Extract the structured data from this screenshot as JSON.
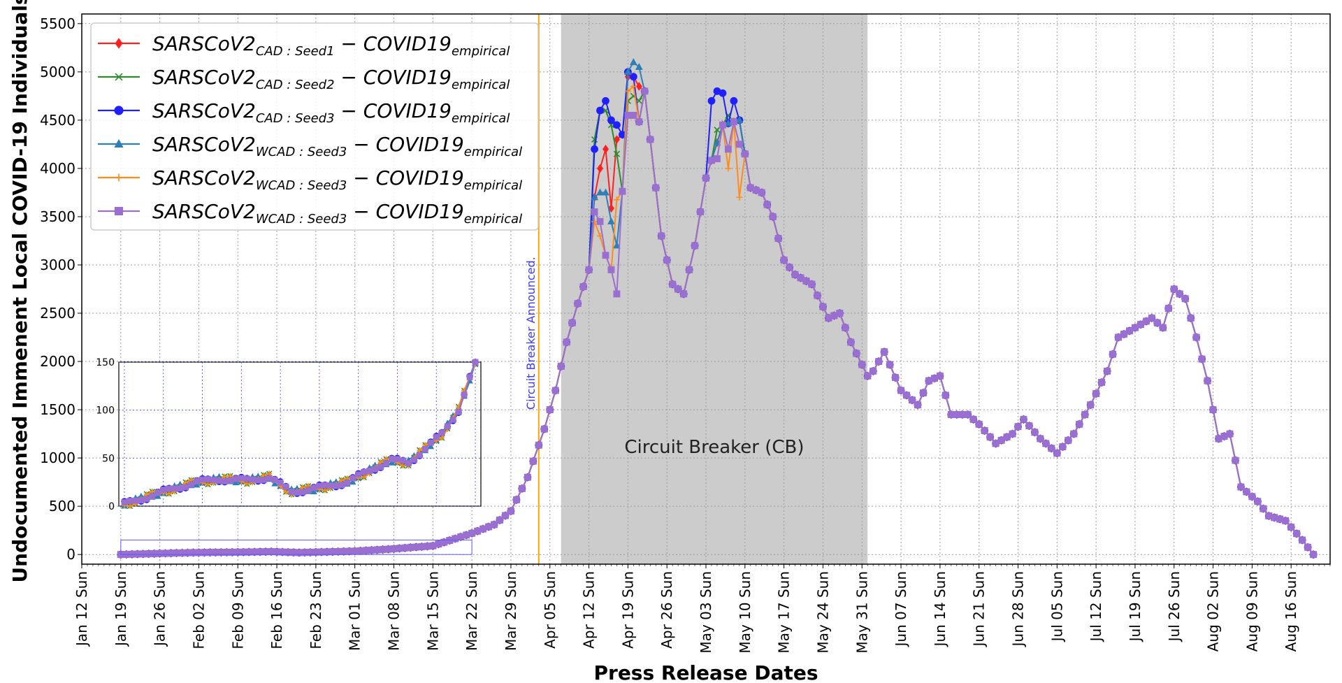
{
  "chart_data": {
    "type": "line",
    "xlabel": "Press Release Dates",
    "ylabel": "Undocumented Immenent Local COVID-19 Individuals",
    "ylim": [
      -100,
      5600
    ],
    "yticks": [
      0,
      500,
      1000,
      1500,
      2000,
      2500,
      3000,
      3500,
      4000,
      4500,
      5000,
      5500
    ],
    "x_start": "2020-01-19",
    "x_end": "2020-08-20",
    "xtick_labels": [
      "Jan 12 Sun",
      "Jan 19 Sun",
      "Jan 26 Sun",
      "Feb 02 Sun",
      "Feb 09 Sun",
      "Feb 16 Sun",
      "Feb 23 Sun",
      "Mar 01 Sun",
      "Mar 08 Sun",
      "Mar 15 Sun",
      "Mar 22 Sun",
      "Mar 29 Sun",
      "Apr 05 Sun",
      "Apr 12 Sun",
      "Apr 19 Sun",
      "Apr 26 Sun",
      "May 03 Sun",
      "May 10 Sun",
      "May 17 Sun",
      "May 24 Sun",
      "May 31 Sun",
      "Jun 07 Sun",
      "Jun 14 Sun",
      "Jun 21 Sun",
      "Jun 28 Sun",
      "Jul 05 Sun",
      "Jul 12 Sun",
      "Jul 19 Sun",
      "Jul 26 Sun",
      "Aug 02 Sun",
      "Aug 09 Sun",
      "Aug 16 Sun"
    ],
    "grid": true,
    "legend_position": "top-left",
    "legend": [
      {
        "base": "SARSCoV2",
        "sub": "CAD : Seed1",
        "mid": " − COVID19",
        "sub2": "empirical",
        "color": "#ff2020",
        "marker": "diamond"
      },
      {
        "base": "SARSCoV2",
        "sub": "CAD : Seed2",
        "mid": " − COVID19",
        "sub2": "empirical",
        "color": "#2a8c2a",
        "marker": "x"
      },
      {
        "base": "SARSCoV2",
        "sub": "CAD : Seed3",
        "mid": " − COVID19",
        "sub2": "empirical",
        "color": "#1f1fff",
        "marker": "circle"
      },
      {
        "base": "SARSCoV2",
        "sub": "WCAD : Seed3",
        "mid": " − COVID19",
        "sub2": "empirical",
        "color": "#2e7eb8",
        "marker": "triangle"
      },
      {
        "base": "SARSCoV2",
        "sub": "WCAD : Seed3",
        "mid": " − COVID19",
        "sub2": "empirical",
        "color": "#ff8c1a",
        "marker": "plus"
      },
      {
        "base": "SARSCoV2",
        "sub": "WCAD : Seed3",
        "mid": " − COVID19",
        "sub2": "empirical",
        "color": "#9a6fd0",
        "marker": "square"
      }
    ],
    "circuit_breaker": {
      "start": "2020-04-07",
      "end": "2020-06-01",
      "label": "Circuit Breaker (CB)"
    },
    "announcement": {
      "date": "2020-04-03",
      "label": "Circuit Breaker Announced.",
      "color": "#ffa500"
    },
    "base_series": [
      [
        "2020-01-19",
        0
      ],
      [
        "2020-02-01",
        20
      ],
      [
        "2020-02-10",
        25
      ],
      [
        "2020-02-15",
        30
      ],
      [
        "2020-02-20",
        20
      ],
      [
        "2020-03-01",
        35
      ],
      [
        "2020-03-07",
        55
      ],
      [
        "2020-03-15",
        90
      ],
      [
        "2020-03-22",
        220
      ],
      [
        "2020-03-26",
        310
      ],
      [
        "2020-03-29",
        450
      ],
      [
        "2020-04-01",
        800
      ],
      [
        "2020-04-04",
        1300
      ],
      [
        "2020-04-06",
        1700
      ],
      [
        "2020-04-08",
        2200
      ],
      [
        "2020-04-10",
        2600
      ],
      [
        "2020-04-12",
        2950
      ],
      [
        "2020-04-15",
        3500
      ],
      [
        "2020-04-19",
        3850
      ],
      [
        "2020-04-22",
        4800
      ],
      [
        "2020-04-25",
        3300
      ],
      [
        "2020-04-27",
        2800
      ],
      [
        "2020-04-29",
        2700
      ],
      [
        "2020-05-01",
        3200
      ],
      [
        "2020-05-03",
        3900
      ],
      [
        "2020-05-06",
        4450
      ],
      [
        "2020-05-09",
        4500
      ],
      [
        "2020-05-11",
        3800
      ],
      [
        "2020-05-13",
        3750
      ],
      [
        "2020-05-15",
        3500
      ],
      [
        "2020-05-17",
        3050
      ],
      [
        "2020-05-19",
        2900
      ],
      [
        "2020-05-22",
        2800
      ],
      [
        "2020-05-25",
        2450
      ],
      [
        "2020-05-27",
        2500
      ],
      [
        "2020-05-29",
        2200
      ],
      [
        "2020-06-01",
        1850
      ],
      [
        "2020-06-02",
        1900
      ],
      [
        "2020-06-04",
        2100
      ],
      [
        "2020-06-07",
        1700
      ],
      [
        "2020-06-10",
        1550
      ],
      [
        "2020-06-12",
        1800
      ],
      [
        "2020-06-14",
        1850
      ],
      [
        "2020-06-16",
        1450
      ],
      [
        "2020-06-19",
        1450
      ],
      [
        "2020-06-21",
        1350
      ],
      [
        "2020-06-24",
        1150
      ],
      [
        "2020-06-27",
        1250
      ],
      [
        "2020-06-29",
        1400
      ],
      [
        "2020-07-02",
        1200
      ],
      [
        "2020-07-05",
        1050
      ],
      [
        "2020-07-08",
        1250
      ],
      [
        "2020-07-11",
        1550
      ],
      [
        "2020-07-14",
        1900
      ],
      [
        "2020-07-16",
        2250
      ],
      [
        "2020-07-19",
        2350
      ],
      [
        "2020-07-22",
        2450
      ],
      [
        "2020-07-24",
        2350
      ],
      [
        "2020-07-26",
        2750
      ],
      [
        "2020-07-28",
        2650
      ],
      [
        "2020-07-30",
        2250
      ],
      [
        "2020-08-01",
        1800
      ],
      [
        "2020-08-03",
        1200
      ],
      [
        "2020-08-05",
        1250
      ],
      [
        "2020-08-07",
        700
      ],
      [
        "2020-08-10",
        550
      ],
      [
        "2020-08-12",
        400
      ],
      [
        "2020-08-15",
        350
      ],
      [
        "2020-08-18",
        150
      ],
      [
        "2020-08-20",
        0
      ]
    ],
    "peak_overrides": {
      "seed1": [
        [
          "2020-04-13",
          3700
        ],
        [
          "2020-04-14",
          4000
        ],
        [
          "2020-04-15",
          4200
        ],
        [
          "2020-04-17",
          4300
        ],
        [
          "2020-04-18",
          4350
        ],
        [
          "2020-04-19",
          4950
        ],
        [
          "2020-04-20",
          4950
        ],
        [
          "2020-04-21",
          4850
        ]
      ],
      "seed2": [
        [
          "2020-04-13",
          4300
        ],
        [
          "2020-04-14",
          4600
        ],
        [
          "2020-04-15",
          4600
        ],
        [
          "2020-04-16",
          4450
        ],
        [
          "2020-04-17",
          4150
        ],
        [
          "2020-04-19",
          4700
        ],
        [
          "2020-04-20",
          4750
        ],
        [
          "2020-04-21",
          4700
        ],
        [
          "2020-05-05",
          4400
        ],
        [
          "2020-05-07",
          4550
        ]
      ],
      "seed3": [
        [
          "2020-04-13",
          4200
        ],
        [
          "2020-04-14",
          4600
        ],
        [
          "2020-04-15",
          4700
        ],
        [
          "2020-04-16",
          4500
        ],
        [
          "2020-04-17",
          4450
        ],
        [
          "2020-04-18",
          4350
        ],
        [
          "2020-04-19",
          5000
        ],
        [
          "2020-04-20",
          4950
        ],
        [
          "2020-05-04",
          4700
        ],
        [
          "2020-05-05",
          4800
        ],
        [
          "2020-05-06",
          4780
        ],
        [
          "2020-05-08",
          4700
        ]
      ],
      "wcad_a": [
        [
          "2020-04-13",
          3700
        ],
        [
          "2020-04-14",
          3750
        ],
        [
          "2020-04-15",
          3750
        ],
        [
          "2020-04-16",
          3450
        ],
        [
          "2020-04-17",
          3200
        ],
        [
          "2020-04-19",
          5000
        ],
        [
          "2020-04-20",
          5100
        ],
        [
          "2020-04-21",
          5050
        ]
      ],
      "wcad_b": [
        [
          "2020-04-13",
          3450
        ],
        [
          "2020-04-14",
          3300
        ],
        [
          "2020-04-15",
          3100
        ],
        [
          "2020-04-16",
          2950
        ],
        [
          "2020-04-19",
          4800
        ],
        [
          "2020-04-20",
          4850
        ],
        [
          "2020-05-05",
          4100
        ],
        [
          "2020-05-07",
          4000
        ],
        [
          "2020-05-09",
          3700
        ]
      ],
      "wcad_c": [
        [
          "2020-04-13",
          3550
        ],
        [
          "2020-04-14",
          3450
        ],
        [
          "2020-04-15",
          3100
        ],
        [
          "2020-04-16",
          2950
        ],
        [
          "2020-04-17",
          2700
        ],
        [
          "2020-04-19",
          4550
        ],
        [
          "2020-04-20",
          4550
        ],
        [
          "2020-05-05",
          4100
        ],
        [
          "2020-05-07",
          4200
        ],
        [
          "2020-05-09",
          4250
        ]
      ]
    },
    "inset": {
      "ylim": [
        0,
        150
      ],
      "yticks": [
        0,
        50,
        100,
        150
      ],
      "x_start": "2020-01-19",
      "x_end": "2020-03-22",
      "points": [
        [
          "2020-01-19",
          2
        ],
        [
          "2020-01-26",
          15
        ],
        [
          "2020-02-01",
          25
        ],
        [
          "2020-02-05",
          28
        ],
        [
          "2020-02-10",
          27
        ],
        [
          "2020-02-14",
          30
        ],
        [
          "2020-02-18",
          15
        ],
        [
          "2020-02-22",
          18
        ],
        [
          "2020-02-28",
          25
        ],
        [
          "2020-03-04",
          40
        ],
        [
          "2020-03-07",
          48
        ],
        [
          "2020-03-10",
          45
        ],
        [
          "2020-03-13",
          60
        ],
        [
          "2020-03-16",
          75
        ],
        [
          "2020-03-19",
          100
        ],
        [
          "2020-03-22",
          150
        ]
      ]
    }
  }
}
